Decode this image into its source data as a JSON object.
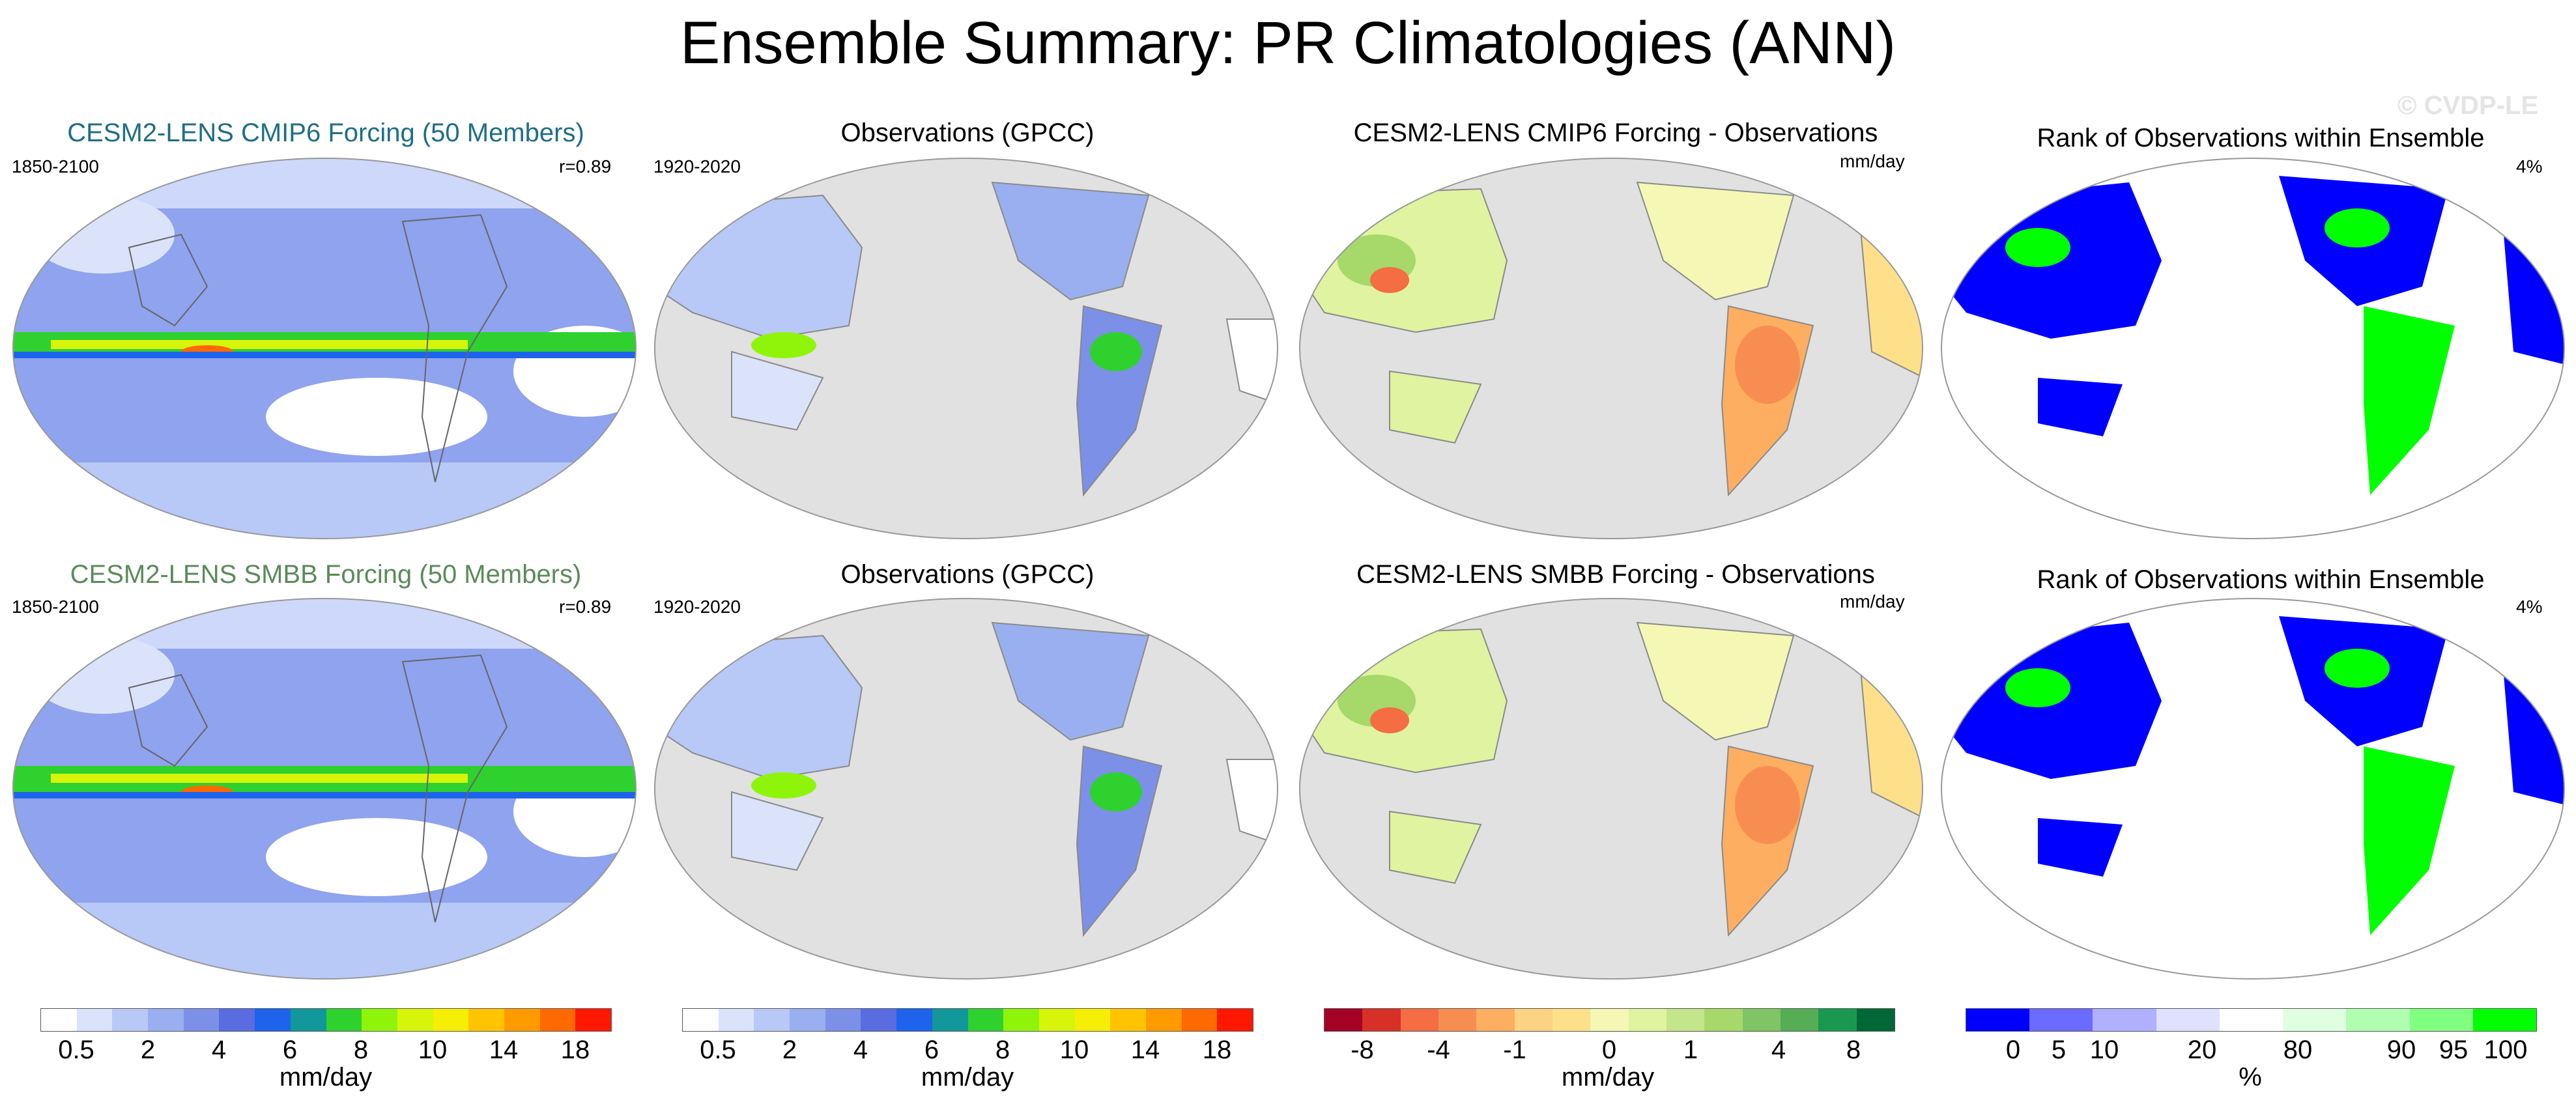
{
  "title": "Ensemble Summary: PR Climatologies (ANN)",
  "watermark": "© CVDP-LE",
  "rows": [
    {
      "panels": [
        {
          "title": "CESM2-LENS CMIP6 Forcing (50 Members)",
          "left": "1850-2100",
          "right": "r=0.89",
          "title_color": "#1f6e84"
        },
        {
          "title": "Observations (GPCC)",
          "left": "1920-2020",
          "right": ""
        },
        {
          "title": "CESM2-LENS CMIP6 Forcing - Observations",
          "left": "",
          "right": "mm/day"
        },
        {
          "title": "Rank of Observations within Ensemble",
          "left": "",
          "right": "4%"
        }
      ]
    },
    {
      "panels": [
        {
          "title": "CESM2-LENS SMBB Forcing (50 Members)",
          "left": "1850-2100",
          "right": "r=0.89",
          "title_color": "#5b8a5b"
        },
        {
          "title": "Observations (GPCC)",
          "left": "1920-2020",
          "right": ""
        },
        {
          "title": "CESM2-LENS SMBB Forcing - Observations",
          "left": "",
          "right": "mm/day"
        },
        {
          "title": "Rank of Observations within Ensemble",
          "left": "",
          "right": "4%"
        }
      ]
    }
  ],
  "colorbars": [
    {
      "name": "precip-model",
      "unit": "mm/day",
      "colors": [
        "#ffffff",
        "#dbe3fb",
        "#b8c8f7",
        "#9aafef",
        "#7c90e8",
        "#5a6de0",
        "#1e63ec",
        "#12979a",
        "#2fd12f",
        "#8ef50a",
        "#d7f50a",
        "#f7ee05",
        "#ffc400",
        "#ff9a00",
        "#ff6a00",
        "#ff1800"
      ],
      "ticks": [
        "0.5",
        "2",
        "4",
        "6",
        "8",
        "10",
        "14",
        "18"
      ]
    },
    {
      "name": "precip-obs",
      "unit": "mm/day",
      "colors": [
        "#ffffff",
        "#dbe3fb",
        "#b8c8f7",
        "#9aafef",
        "#7c90e8",
        "#5a6de0",
        "#1e63ec",
        "#12979a",
        "#2fd12f",
        "#8ef50a",
        "#d7f50a",
        "#f7ee05",
        "#ffc400",
        "#ff9a00",
        "#ff6a00",
        "#ff1800"
      ],
      "ticks": [
        "0.5",
        "2",
        "4",
        "6",
        "8",
        "10",
        "14",
        "18"
      ]
    },
    {
      "name": "difference",
      "unit": "mm/day",
      "colors": [
        "#a50026",
        "#d73027",
        "#f46d43",
        "#f88d52",
        "#fdae61",
        "#fdd283",
        "#fee08b",
        "#f4f8b4",
        "#e0f3a0",
        "#c5e58a",
        "#a6d96a",
        "#7fc465",
        "#55ad55",
        "#1a9850",
        "#006837"
      ],
      "ticks": [
        "-8",
        "-4",
        "-1",
        "0",
        "1",
        "4",
        "8"
      ]
    },
    {
      "name": "rank",
      "unit": "%",
      "colors": [
        "#0000ff",
        "#6b6bff",
        "#b0b0ff",
        "#e0e0ff",
        "#ffffff",
        "#e0ffe0",
        "#b0ffb0",
        "#80ff80",
        "#00ff00"
      ],
      "ticks": [
        "0",
        "5",
        "10",
        "20",
        "80",
        "90",
        "95",
        "100"
      ]
    }
  ],
  "colors": {
    "ocean_gray": "#e1e1e1",
    "coast": "#8a8a8a"
  }
}
